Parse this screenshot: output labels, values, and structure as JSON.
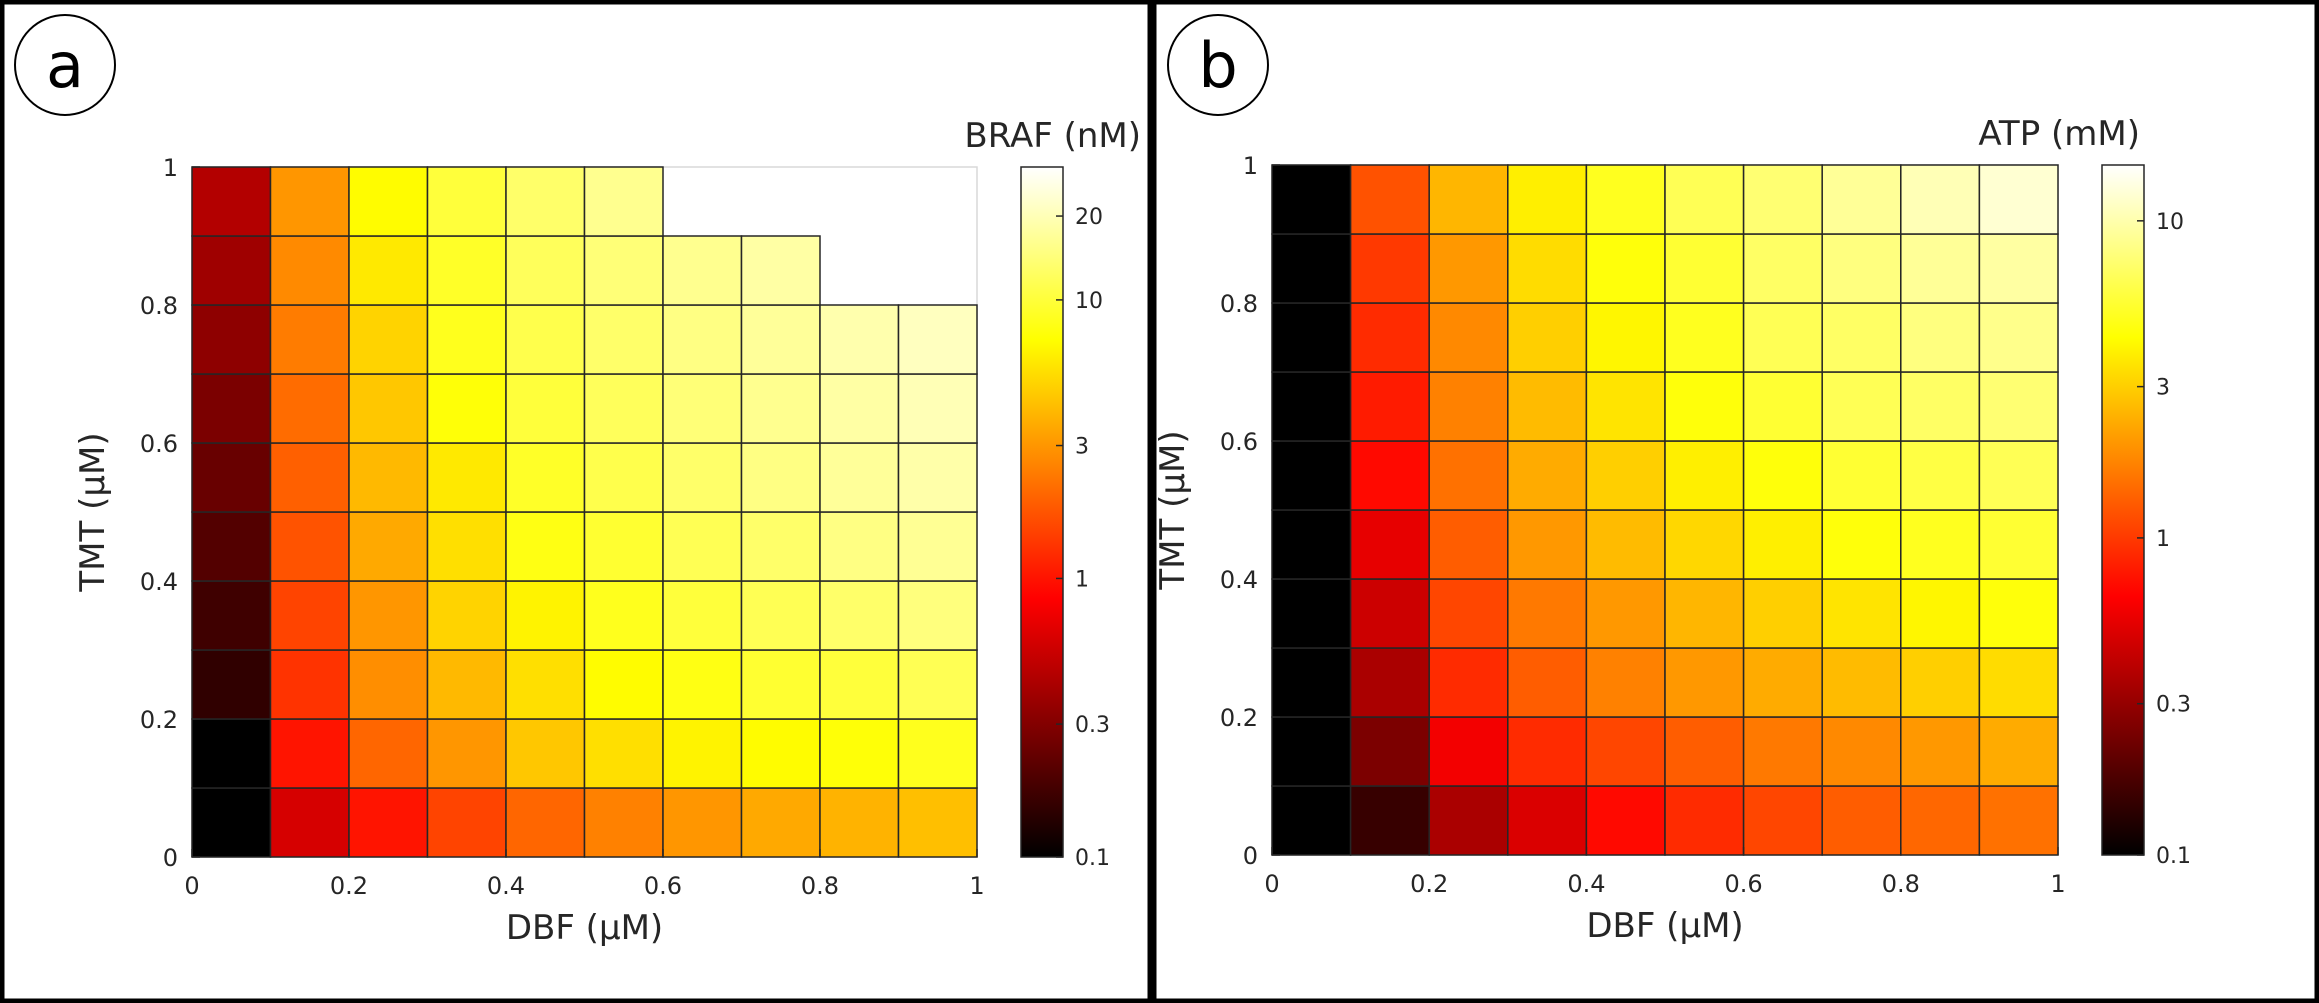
{
  "panels": [
    {
      "letter": "a",
      "title": "BRAF (nM)",
      "chart_data": {
        "type": "heatmap",
        "xlabel": "DBF (μM)",
        "ylabel": "TMT (μM)",
        "xlim": [
          0,
          1
        ],
        "ylim": [
          0,
          1
        ],
        "x_ticks": [
          "0",
          "0.2",
          "0.4",
          "0.6",
          "0.8",
          "1"
        ],
        "y_ticks": [
          "0",
          "0.2",
          "0.4",
          "0.6",
          "0.8",
          "1"
        ],
        "x_edges": [
          0,
          0.1,
          0.2,
          0.3,
          0.4,
          0.5,
          0.6,
          0.7,
          0.8,
          0.9,
          1.0
        ],
        "y_edges": [
          0,
          0.1,
          0.2,
          0.3,
          0.4,
          0.5,
          0.6,
          0.7,
          0.8,
          0.9,
          1.0
        ],
        "values_rows_bottom_to_top": [
          [
            0.1,
            0.6,
            1.0,
            1.5,
            2.0,
            2.5,
            3.0,
            3.5,
            3.8,
            4.2
          ],
          [
            0.1,
            1.0,
            2.0,
            3.0,
            4.5,
            5.5,
            6.5,
            7.0,
            7.5,
            8.5
          ],
          [
            0.15,
            1.3,
            2.8,
            4.0,
            5.5,
            7.0,
            8.0,
            9.5,
            10.0,
            11.5
          ],
          [
            0.17,
            1.5,
            3.0,
            5.0,
            6.5,
            8.5,
            10.0,
            11.5,
            13.0,
            14.5
          ],
          [
            0.2,
            1.7,
            3.5,
            5.5,
            8.0,
            9.5,
            11.5,
            13.0,
            15.0,
            16.5
          ],
          [
            0.24,
            1.9,
            4.0,
            6.0,
            9.0,
            11.0,
            13.0,
            15.0,
            17.0,
            18.5
          ],
          [
            0.28,
            2.1,
            4.5,
            7.5,
            10.0,
            12.0,
            14.0,
            16.0,
            18.0,
            20.0
          ],
          [
            0.33,
            2.4,
            5.0,
            8.5,
            11.0,
            13.0,
            15.0,
            17.0,
            19.0,
            21.0
          ],
          [
            0.38,
            2.7,
            6.0,
            9.0,
            12.0,
            14.0,
            16.0,
            18.0,
            null,
            null
          ],
          [
            0.45,
            3.0,
            7.0,
            10.0,
            13.0,
            16.0,
            null,
            null,
            null,
            null
          ]
        ],
        "colorbar": {
          "scale": "log",
          "range": [
            0.1,
            30
          ],
          "ticks": [
            {
              "value": 0.1,
              "label": "0.1"
            },
            {
              "value": 0.3,
              "label": "0.3"
            },
            {
              "value": 1,
              "label": "1"
            },
            {
              "value": 3,
              "label": "3"
            },
            {
              "value": 10,
              "label": "10"
            },
            {
              "value": 20,
              "label": "20"
            }
          ]
        },
        "colormap": "hot"
      }
    },
    {
      "letter": "b",
      "title": "ATP (mM)",
      "chart_data": {
        "type": "heatmap",
        "xlabel": "DBF (μM)",
        "ylabel": "TMT (μM)",
        "xlim": [
          0,
          1
        ],
        "ylim": [
          0,
          1
        ],
        "x_ticks": [
          "0",
          "0.2",
          "0.4",
          "0.6",
          "0.8",
          "1"
        ],
        "y_ticks": [
          "0",
          "0.2",
          "0.4",
          "0.6",
          "0.8",
          "1"
        ],
        "x_edges": [
          0,
          0.1,
          0.2,
          0.3,
          0.4,
          0.5,
          0.6,
          0.7,
          0.8,
          0.9,
          1.0
        ],
        "y_edges": [
          0,
          0.1,
          0.2,
          0.3,
          0.4,
          0.5,
          0.6,
          0.7,
          0.8,
          0.9,
          1.0
        ],
        "values_rows_bottom_to_top": [
          [
            0.05,
            0.15,
            0.35,
            0.5,
            0.7,
            0.9,
            1.1,
            1.3,
            1.4,
            1.5
          ],
          [
            0.05,
            0.25,
            0.6,
            0.9,
            1.1,
            1.3,
            1.6,
            1.8,
            2.0,
            2.3
          ],
          [
            0.05,
            0.35,
            0.9,
            1.3,
            1.7,
            2.0,
            2.3,
            2.6,
            3.0,
            3.3
          ],
          [
            0.05,
            0.45,
            1.1,
            1.6,
            2.0,
            2.5,
            3.0,
            3.5,
            4.0,
            4.5
          ],
          [
            0.05,
            0.55,
            1.3,
            2.0,
            2.6,
            3.2,
            3.8,
            4.5,
            5.0,
            5.5
          ],
          [
            0.05,
            0.7,
            1.5,
            2.3,
            3.0,
            3.8,
            4.5,
            5.5,
            6.0,
            6.5
          ],
          [
            0.05,
            0.8,
            1.7,
            2.6,
            3.5,
            4.5,
            5.5,
            6.5,
            7.0,
            7.5
          ],
          [
            0.05,
            0.9,
            1.8,
            3.0,
            4.0,
            5.0,
            6.5,
            7.0,
            8.0,
            8.5
          ],
          [
            0.05,
            1.0,
            2.0,
            3.3,
            4.5,
            5.5,
            7.0,
            8.0,
            9.0,
            9.5
          ],
          [
            0.05,
            1.2,
            2.5,
            3.8,
            5.0,
            6.5,
            7.5,
            9.0,
            10.5,
            12.0
          ]
        ],
        "colorbar": {
          "scale": "log",
          "range": [
            0.1,
            15
          ],
          "ticks": [
            {
              "value": 0.1,
              "label": "0.1"
            },
            {
              "value": 0.3,
              "label": "0.3"
            },
            {
              "value": 1,
              "label": "1"
            },
            {
              "value": 3,
              "label": "3"
            },
            {
              "value": 10,
              "label": "10"
            }
          ]
        },
        "colormap": "hot"
      }
    }
  ]
}
